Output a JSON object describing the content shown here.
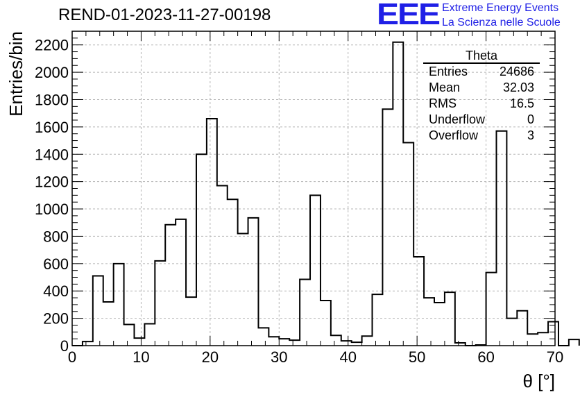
{
  "title": "REND-01-2023-11-27-00198",
  "logo": {
    "mark": "EEE",
    "line1": "Extreme Energy Events",
    "line2": "La Scienza nelle Scuole",
    "color": "#1f1fe6"
  },
  "stats": {
    "name": "Theta",
    "rows": [
      {
        "key": "Entries",
        "value": "24686"
      },
      {
        "key": "Mean",
        "value": "32.03"
      },
      {
        "key": "RMS",
        "value": "16.5"
      },
      {
        "key": "Underflow",
        "value": "0"
      },
      {
        "key": "Overflow",
        "value": "3"
      }
    ]
  },
  "chart_data": {
    "type": "bar",
    "histogram": true,
    "bin_width": 1.5,
    "x_start": 0,
    "bin_values": [
      0,
      30,
      510,
      320,
      600,
      155,
      55,
      160,
      620,
      885,
      925,
      355,
      1400,
      1660,
      1170,
      1070,
      820,
      935,
      130,
      65,
      50,
      40,
      485,
      1100,
      330,
      75,
      35,
      25,
      70,
      375,
      1730,
      2220,
      1485,
      650,
      350,
      315,
      390,
      20,
      0,
      5,
      535,
      1570,
      200,
      255,
      85,
      95,
      175,
      0,
      45
    ],
    "xlabel": "θ [°]",
    "ylabel": "Entries/bin",
    "xlim": [
      0,
      70
    ],
    "ylim": [
      0,
      2300
    ],
    "x_ticks": [
      0,
      10,
      20,
      30,
      40,
      50,
      60,
      70
    ],
    "y_ticks": [
      0,
      200,
      400,
      600,
      800,
      1000,
      1200,
      1400,
      1600,
      1800,
      2000,
      2200
    ],
    "grid": true,
    "line_color": "#000000"
  }
}
